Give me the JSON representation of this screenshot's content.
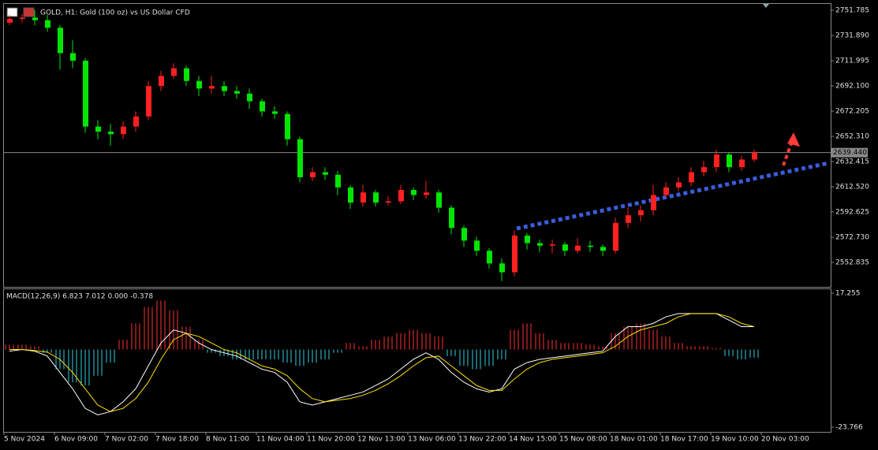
{
  "chart_data": {
    "type": "candlestick",
    "title": "GOLD, H1:  Gold (100 oz) vs US Dollar CFD",
    "up_color": "#ff2020",
    "down_color": "#00e600",
    "open": [
      2742,
      2745,
      2746,
      2744,
      2738,
      2718,
      2712,
      2660,
      2656,
      2654,
      2660,
      2668,
      2692,
      2700,
      2706,
      2696,
      2690,
      2692,
      2688,
      2686,
      2680,
      2672,
      2670,
      2650,
      2620,
      2624,
      2622,
      2612,
      2600,
      2608,
      2600,
      2601,
      2610,
      2606,
      2608,
      2596,
      2580,
      2570,
      2562,
      2552,
      2545,
      2574,
      2568,
      2566,
      2567,
      2562,
      2566,
      2565,
      2562,
      2584,
      2590,
      2594,
      2606,
      2612,
      2616,
      2624,
      2628,
      2638,
      2628,
      2634
    ],
    "high": [
      2748,
      2749,
      2752,
      2748,
      2740,
      2728,
      2714,
      2665,
      2662,
      2664,
      2672,
      2696,
      2704,
      2710,
      2708,
      2700,
      2700,
      2696,
      2692,
      2690,
      2682,
      2676,
      2672,
      2652,
      2628,
      2628,
      2625,
      2614,
      2614,
      2610,
      2605,
      2614,
      2612,
      2617,
      2610,
      2598,
      2582,
      2573,
      2564,
      2556,
      2578,
      2576,
      2571,
      2571,
      2569,
      2572,
      2570,
      2567,
      2588,
      2596,
      2598,
      2614,
      2616,
      2620,
      2628,
      2633,
      2642,
      2640,
      2637,
      2642
    ],
    "low": [
      2740,
      2742,
      2740,
      2735,
      2705,
      2706,
      2655,
      2650,
      2645,
      2650,
      2656,
      2665,
      2688,
      2698,
      2692,
      2684,
      2686,
      2684,
      2682,
      2674,
      2668,
      2666,
      2645,
      2616,
      2617,
      2618,
      2606,
      2595,
      2597,
      2597,
      2598,
      2599,
      2602,
      2603,
      2592,
      2575,
      2565,
      2558,
      2548,
      2538,
      2542,
      2563,
      2561,
      2560,
      2558,
      2560,
      2561,
      2558,
      2560,
      2580,
      2585,
      2590,
      2604,
      2609,
      2613,
      2621,
      2624,
      2624,
      2625,
      2632
    ],
    "close": [
      2745,
      2746,
      2744,
      2738,
      2718,
      2712,
      2660,
      2656,
      2654,
      2660,
      2668,
      2692,
      2700,
      2706,
      2696,
      2690,
      2692,
      2688,
      2686,
      2680,
      2672,
      2670,
      2650,
      2620,
      2624,
      2622,
      2612,
      2600,
      2608,
      2600,
      2601,
      2610,
      2606,
      2608,
      2596,
      2580,
      2570,
      2562,
      2552,
      2545,
      2574,
      2568,
      2566,
      2567,
      2562,
      2566,
      2565,
      2562,
      2584,
      2590,
      2594,
      2606,
      2612,
      2616,
      2624,
      2628,
      2638,
      2628,
      2634,
      2639.44
    ],
    "current_price": {
      "value": 2639.44,
      "label": "2639.440"
    },
    "ylim": [
      2533.5,
      2756.8
    ],
    "yticks": [
      2751.785,
      {
        "value": 2731.89,
        "label": "2731.890"
      },
      2711.995,
      {
        "value": 2692.1,
        "label": "2692.100"
      },
      2672.205,
      {
        "value": 2652.31,
        "label": "2652.310"
      },
      2632.415,
      {
        "value": 2612.52,
        "label": "2612.520"
      },
      2592.625,
      {
        "value": 2572.73,
        "label": "2572.730"
      },
      2552.835
    ],
    "xlim": [
      0,
      60
    ],
    "xticks": [
      {
        "value": 0,
        "label": "5 Nov 2024"
      },
      {
        "value": 4,
        "label": "6 Nov 09:00"
      },
      {
        "value": 8,
        "label": "7 Nov 02:00"
      },
      {
        "value": 12,
        "label": "7 Nov 18:00"
      },
      {
        "value": 16,
        "label": "8 Nov 11:00"
      },
      {
        "value": 20,
        "label": "11 Nov 04:00"
      },
      {
        "value": 24,
        "label": "11 Nov 20:00"
      },
      {
        "value": 28,
        "label": "12 Nov 13:00"
      },
      {
        "value": 32,
        "label": "13 Nov 06:00"
      },
      {
        "value": 36,
        "label": "13 Nov 22:00"
      },
      {
        "value": 40,
        "label": "14 Nov 15:00"
      },
      {
        "value": 44,
        "label": "15 Nov 08:00"
      },
      {
        "value": 48,
        "label": "18 Nov 01:00"
      },
      {
        "value": 52,
        "label": "18 Nov 17:00"
      },
      {
        "value": 56,
        "label": "19 Nov 10:00"
      },
      {
        "value": 60,
        "label": "20 Nov 03:00"
      }
    ],
    "macd": {
      "label": "MACD(12,26,9) 6.823 7.012 0.000 -0.378",
      "ylim": [
        -25.2,
        18.46
      ],
      "yticks": [
        17.255,
        -23.766
      ],
      "hist_pos_color": "#ff3030",
      "hist_neg_color": "#30d0e0",
      "histogram": [
        1.5,
        1.5,
        1,
        -1,
        -6,
        -10,
        -11,
        -8,
        -4,
        3,
        8,
        13,
        15,
        12,
        7,
        3,
        -1,
        -2,
        -3,
        -3,
        -3,
        -3,
        -4,
        -5,
        -4,
        -3,
        -1,
        2,
        1,
        3,
        4,
        5,
        6,
        5,
        4,
        -2,
        -5,
        -6,
        -5,
        -3,
        6,
        8,
        5,
        3,
        2,
        2,
        1.5,
        1,
        5,
        7,
        8,
        6,
        4,
        2,
        1,
        1,
        0.5,
        -2,
        -3,
        -2.5
      ],
      "macd_color": "#ffffff",
      "macd_line": [
        -0.5,
        0,
        -0.5,
        -2,
        -7,
        -12,
        -18,
        -20,
        -19,
        -16,
        -12,
        -5,
        2,
        6,
        5,
        2,
        0,
        -1,
        -2,
        -4,
        -6,
        -7,
        -10,
        -16,
        -17,
        -16,
        -15,
        -14,
        -13,
        -11,
        -9,
        -6,
        -3,
        -1,
        -3,
        -7,
        -10,
        -12,
        -13,
        -12,
        -6,
        -4,
        -3,
        -2.5,
        -2,
        -1.5,
        -1,
        -0.5,
        4,
        7,
        7,
        8,
        10,
        11,
        11,
        11,
        11,
        9,
        7,
        7
      ],
      "signal_color": "#ffe000",
      "signal_line": [
        0,
        0,
        -0.3,
        -0.8,
        -3,
        -7,
        -12,
        -17,
        -19,
        -18,
        -15,
        -10,
        -3,
        3,
        5,
        4,
        2,
        0,
        -1,
        -3,
        -5,
        -6,
        -8,
        -12,
        -15,
        -16,
        -15.5,
        -15,
        -14,
        -12.5,
        -10.5,
        -8,
        -5,
        -2.5,
        -2,
        -5,
        -8,
        -11,
        -12.5,
        -12.5,
        -9,
        -6,
        -4,
        -3,
        -2.5,
        -2,
        -1.5,
        -1,
        1,
        4,
        6,
        7,
        8,
        10,
        11,
        11,
        11,
        10,
        8,
        7
      ]
    }
  }
}
